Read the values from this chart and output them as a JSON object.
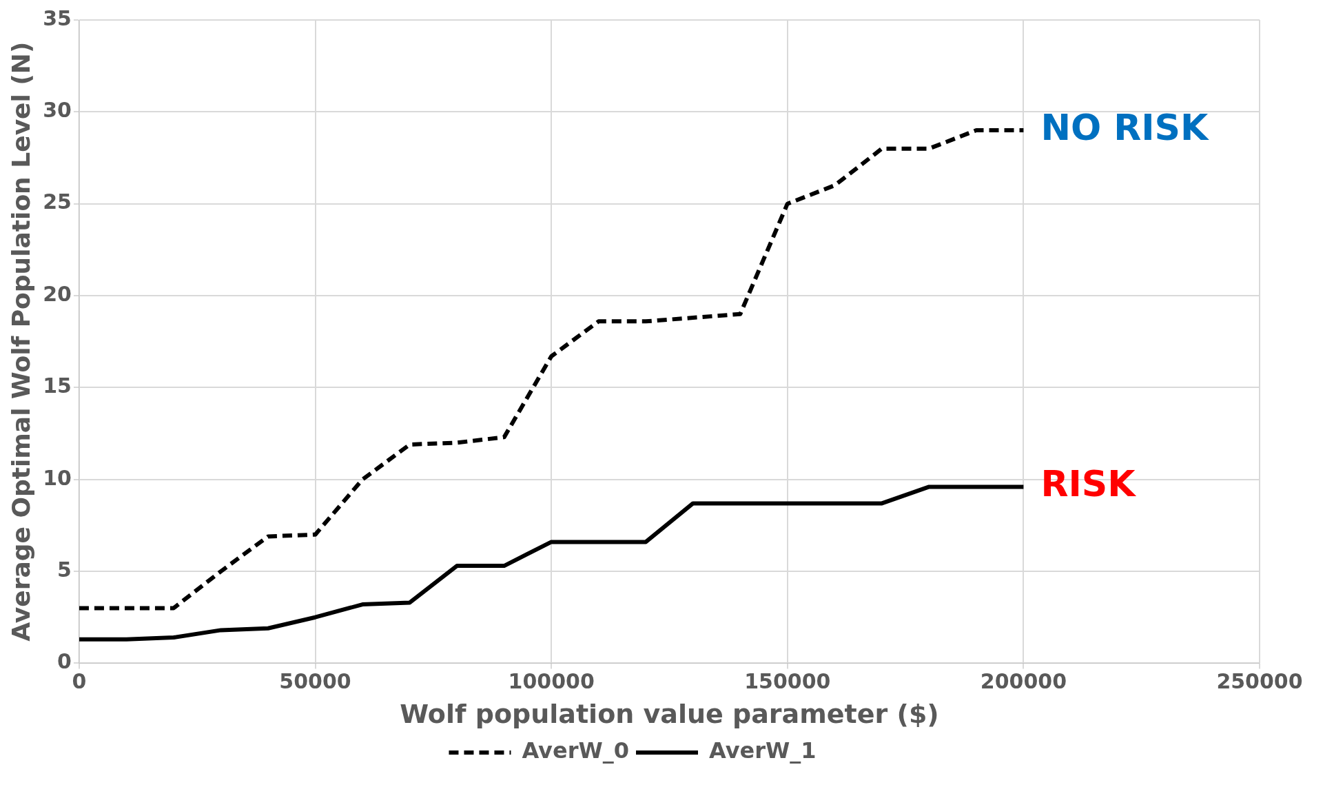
{
  "chart_data": {
    "type": "line",
    "xlabel": "Wolf population value parameter ($)",
    "ylabel": "Average Optimal Wolf Population Level (N)",
    "x": [
      0,
      10000,
      20000,
      30000,
      40000,
      50000,
      60000,
      70000,
      80000,
      90000,
      100000,
      110000,
      120000,
      130000,
      140000,
      150000,
      160000,
      170000,
      180000,
      190000,
      200000
    ],
    "series": [
      {
        "name": "AverW_0",
        "color": "#000000",
        "line_style": "dashed",
        "values": [
          3,
          3,
          3,
          5,
          6.9,
          7,
          10,
          11.9,
          12,
          12.3,
          16.7,
          18.6,
          18.6,
          18.8,
          19,
          25,
          26,
          28,
          28,
          29,
          29
        ]
      },
      {
        "name": "AverW_1",
        "color": "#000000",
        "line_style": "solid",
        "values": [
          1.3,
          1.3,
          1.4,
          1.8,
          1.9,
          2.5,
          3.2,
          3.3,
          5.3,
          5.3,
          6.6,
          6.6,
          6.6,
          8.7,
          8.7,
          8.7,
          8.7,
          8.7,
          9.6,
          9.6,
          9.6
        ]
      }
    ],
    "annotations": [
      {
        "text": "NO RISK",
        "x": 200000,
        "y": 29
      },
      {
        "text": "RISK",
        "x": 200000,
        "y": 9.6
      }
    ],
    "xlim": [
      0,
      250000
    ],
    "xticks": [
      0,
      50000,
      100000,
      150000,
      200000,
      250000
    ],
    "ylim": [
      0,
      35
    ],
    "yticks": [
      0,
      5,
      10,
      15,
      20,
      25,
      30,
      35
    ],
    "grid": true,
    "legend": "bottom",
    "marker": "none"
  }
}
